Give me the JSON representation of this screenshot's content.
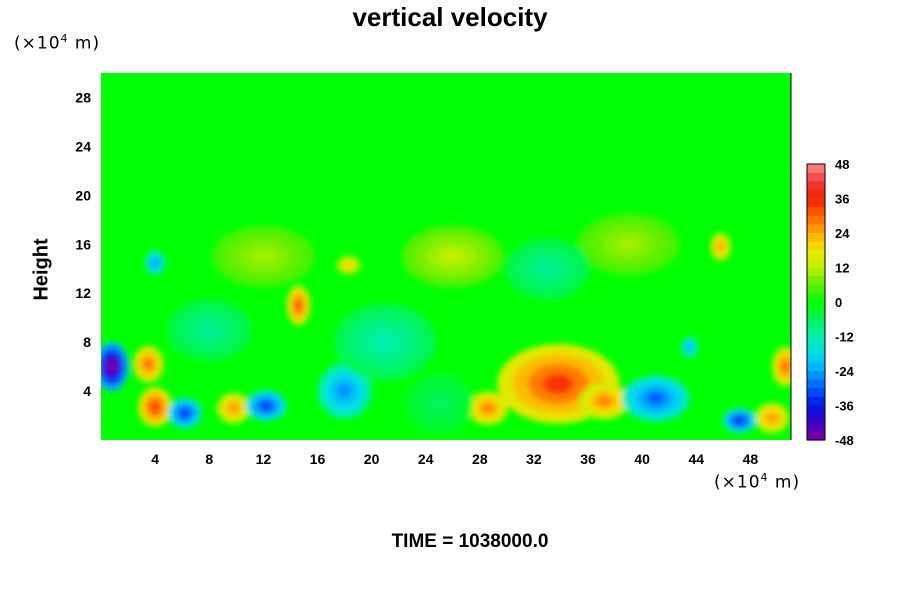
{
  "chart_data": {
    "type": "heatmap",
    "title": "vertical velocity",
    "ylabel": "Height",
    "x_unit": {
      "prefix": "(×10",
      "exp": "4",
      "suffix": " m)"
    },
    "y_unit": {
      "prefix": "(×10",
      "exp": "4",
      "suffix": " m)"
    },
    "xlim": [
      0,
      51
    ],
    "ylim": [
      0,
      30
    ],
    "x_ticks": [
      4,
      8,
      12,
      16,
      20,
      24,
      28,
      32,
      36,
      40,
      44,
      48
    ],
    "y_ticks": [
      4,
      8,
      12,
      16,
      20,
      24,
      28
    ],
    "colorbar": {
      "range": [
        -48,
        48
      ],
      "ticks": [
        48,
        36,
        24,
        12,
        0,
        -12,
        -24,
        -36,
        -48
      ]
    },
    "background_value": 0,
    "features": [
      {
        "x": 0.8,
        "y": 6,
        "rx": 1.0,
        "ry": 1.6,
        "value": -50
      },
      {
        "x": 3.5,
        "y": 6.2,
        "rx": 0.9,
        "ry": 1.2,
        "value": 30
      },
      {
        "x": 4,
        "y": 2.7,
        "rx": 1.0,
        "ry": 1.3,
        "value": 34
      },
      {
        "x": 6.2,
        "y": 2.2,
        "rx": 1.0,
        "ry": 1.0,
        "value": -34
      },
      {
        "x": 9.8,
        "y": 2.6,
        "rx": 1.0,
        "ry": 1.0,
        "value": 26
      },
      {
        "x": 12.2,
        "y": 2.8,
        "rx": 1.2,
        "ry": 1.0,
        "value": -34
      },
      {
        "x": 14.6,
        "y": 11,
        "rx": 0.7,
        "ry": 1.3,
        "value": 32
      },
      {
        "x": 18,
        "y": 4,
        "rx": 1.6,
        "ry": 1.8,
        "value": -26
      },
      {
        "x": 18.3,
        "y": 14.3,
        "rx": 0.7,
        "ry": 0.6,
        "value": 22
      },
      {
        "x": 4,
        "y": 14.5,
        "rx": 0.6,
        "ry": 0.8,
        "value": -26
      },
      {
        "x": 28.6,
        "y": 2.6,
        "rx": 1.2,
        "ry": 1.1,
        "value": 28
      },
      {
        "x": 33.8,
        "y": 4.6,
        "rx": 3.6,
        "ry": 2.6,
        "value": 34
      },
      {
        "x": 37.2,
        "y": 3.2,
        "rx": 1.5,
        "ry": 1.2,
        "value": 28
      },
      {
        "x": 41,
        "y": 3.4,
        "rx": 2.0,
        "ry": 1.5,
        "value": -30
      },
      {
        "x": 47.2,
        "y": 1.6,
        "rx": 1.0,
        "ry": 0.8,
        "value": -36
      },
      {
        "x": 49.6,
        "y": 1.8,
        "rx": 1.0,
        "ry": 1.0,
        "value": 26
      },
      {
        "x": 50.6,
        "y": 6,
        "rx": 0.8,
        "ry": 1.3,
        "value": 30
      },
      {
        "x": 45.8,
        "y": 15.8,
        "rx": 0.6,
        "ry": 0.9,
        "value": 26
      },
      {
        "x": 43.5,
        "y": 7.6,
        "rx": 0.5,
        "ry": 0.7,
        "value": -24
      },
      {
        "x": 26,
        "y": 15,
        "rx": 3.0,
        "ry": 2.0,
        "value": 12
      },
      {
        "x": 12,
        "y": 15,
        "rx": 3.0,
        "ry": 2.0,
        "value": 10
      },
      {
        "x": 39,
        "y": 16,
        "rx": 3.0,
        "ry": 2.0,
        "value": 10
      },
      {
        "x": 21,
        "y": 8,
        "rx": 3.0,
        "ry": 2.5,
        "value": -12
      },
      {
        "x": 33,
        "y": 14,
        "rx": 2.5,
        "ry": 2.0,
        "value": -10
      },
      {
        "x": 8,
        "y": 9,
        "rx": 2.5,
        "ry": 2.0,
        "value": -10
      },
      {
        "x": 25,
        "y": 3,
        "rx": 2.0,
        "ry": 2.0,
        "value": -6
      }
    ]
  },
  "time_label": "TIME = 1038000.0"
}
